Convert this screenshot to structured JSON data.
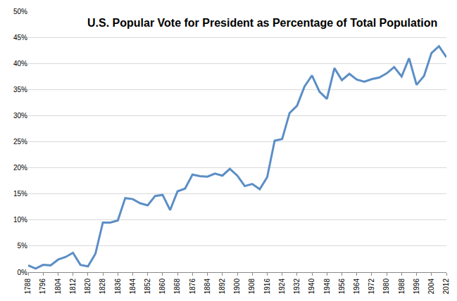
{
  "chart_data": {
    "type": "line",
    "title": "U.S. Popular Vote for President as Percentage of Total Population",
    "x": [
      1788,
      1792,
      1796,
      1800,
      1804,
      1808,
      1812,
      1816,
      1820,
      1824,
      1828,
      1832,
      1836,
      1840,
      1844,
      1848,
      1852,
      1856,
      1860,
      1864,
      1868,
      1872,
      1876,
      1880,
      1884,
      1888,
      1892,
      1896,
      1900,
      1904,
      1908,
      1912,
      1916,
      1920,
      1924,
      1928,
      1932,
      1936,
      1940,
      1944,
      1948,
      1952,
      1956,
      1960,
      1964,
      1968,
      1972,
      1976,
      1980,
      1984,
      1988,
      1992,
      1996,
      2000,
      2004,
      2008,
      2012
    ],
    "values": [
      1.3,
      0.7,
      1.4,
      1.3,
      2.4,
      2.9,
      3.7,
      1.4,
      1.1,
      3.5,
      9.5,
      9.5,
      9.9,
      14.2,
      14.0,
      13.2,
      12.8,
      14.6,
      14.8,
      11.9,
      15.5,
      16.0,
      18.7,
      18.4,
      18.3,
      18.9,
      18.5,
      19.8,
      18.5,
      16.5,
      16.9,
      15.9,
      18.2,
      25.2,
      25.5,
      30.5,
      31.9,
      35.6,
      37.7,
      34.6,
      33.2,
      39.1,
      36.8,
      38.0,
      36.9,
      36.5,
      37.0,
      37.3,
      38.1,
      39.3,
      37.5,
      41.0,
      35.9,
      37.6,
      42.0,
      43.3,
      41.2
    ],
    "color": "#5b8ec6",
    "xlim": [
      1788,
      2012
    ],
    "xticks": [
      1788,
      1796,
      1804,
      1812,
      1820,
      1828,
      1836,
      1844,
      1852,
      1860,
      1868,
      1876,
      1884,
      1892,
      1900,
      1908,
      1916,
      1924,
      1932,
      1940,
      1948,
      1956,
      1964,
      1972,
      1980,
      1988,
      1996,
      2004,
      2012
    ],
    "ylim": [
      0,
      50
    ],
    "yticks": [
      {
        "value": 0,
        "label": "0%"
      },
      {
        "value": 5,
        "label": "5%"
      },
      {
        "value": 10,
        "label": "10%"
      },
      {
        "value": 15,
        "label": "15%"
      },
      {
        "value": 20,
        "label": "20%"
      },
      {
        "value": 25,
        "label": "25%"
      },
      {
        "value": 30,
        "label": "30%"
      },
      {
        "value": 35,
        "label": "35%"
      },
      {
        "value": 40,
        "label": "40%"
      },
      {
        "value": 45,
        "label": "45%"
      },
      {
        "value": 50,
        "label": "50%"
      }
    ],
    "grid": true
  }
}
